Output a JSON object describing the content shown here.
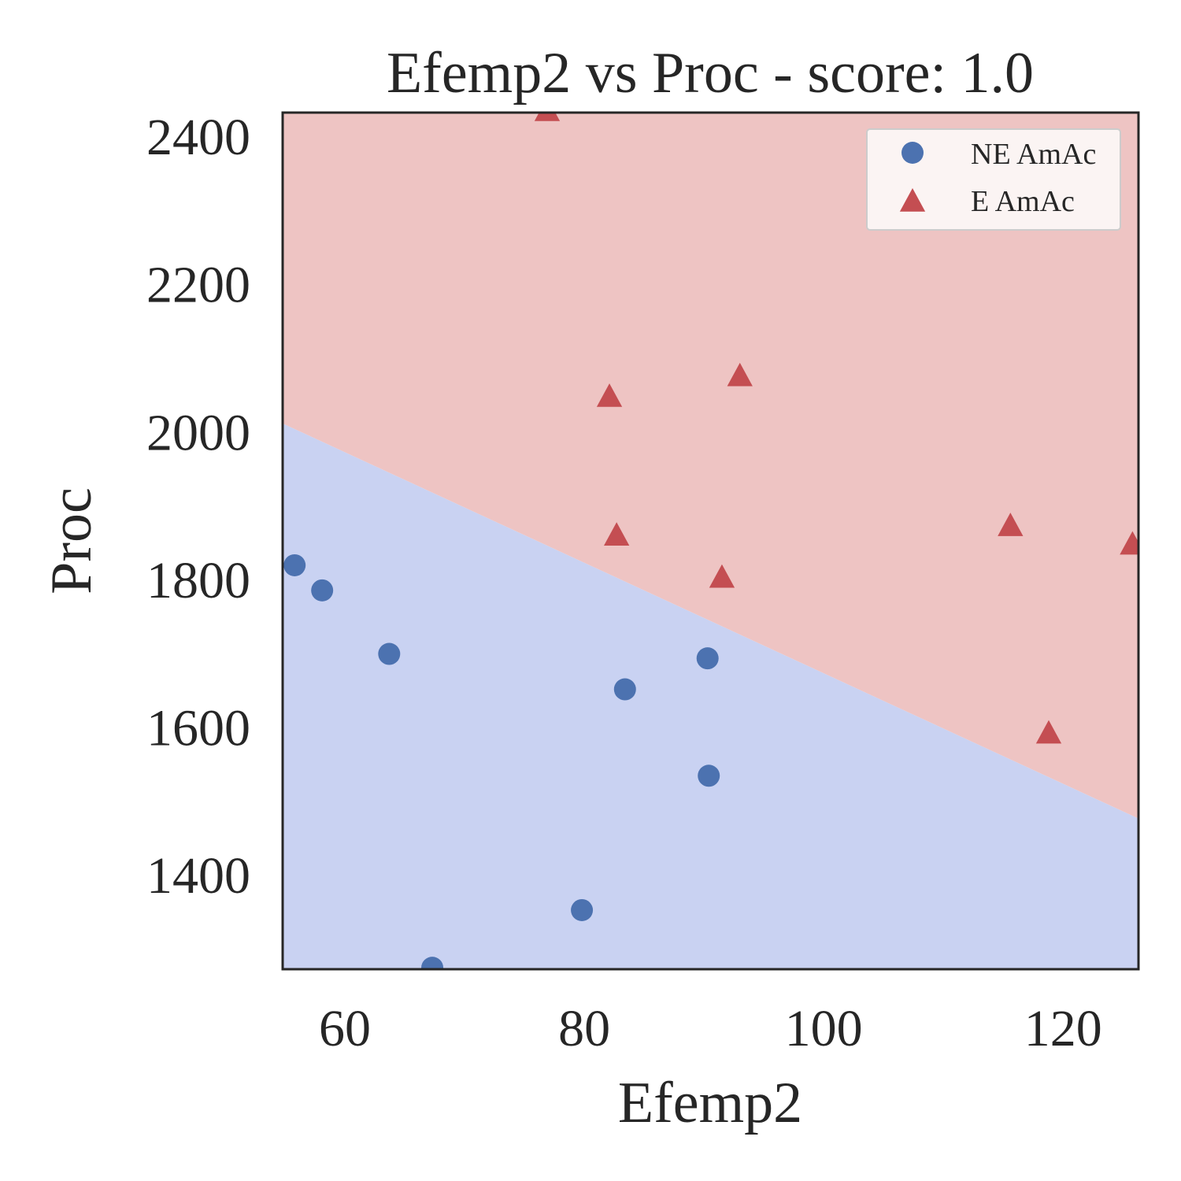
{
  "chart_data": {
    "type": "scatter",
    "title": "Efemp2 vs Proc - score: 1.0",
    "xlabel": "Efemp2",
    "ylabel": "Proc",
    "xlim": [
      54.8,
      126.3
    ],
    "ylim": [
      1270,
      2430
    ],
    "x_ticks": [
      60,
      80,
      100,
      120
    ],
    "y_ticks": [
      1400,
      1600,
      1800,
      2000,
      2200,
      2400
    ],
    "grid": false,
    "legend_position": "top-right",
    "decision_boundary": {
      "left": {
        "x": 54.8,
        "y": 2009
      },
      "right": {
        "x": 126.3,
        "y": 1474
      }
    },
    "colors": {
      "NE AmAc": "#4c72b0",
      "E AmAc": "#c44e52",
      "region_NE": "#c9d2f2",
      "region_E": "#eec4c3",
      "axes": "#262626"
    },
    "series": [
      {
        "name": "NE AmAc",
        "marker": "circle",
        "points": [
          {
            "x": 55.8,
            "y": 1817
          },
          {
            "x": 58.1,
            "y": 1783
          },
          {
            "x": 63.7,
            "y": 1697
          },
          {
            "x": 67.3,
            "y": 1272
          },
          {
            "x": 79.8,
            "y": 1350
          },
          {
            "x": 83.4,
            "y": 1649
          },
          {
            "x": 90.3,
            "y": 1691
          },
          {
            "x": 90.4,
            "y": 1532
          }
        ]
      },
      {
        "name": "E AmAc",
        "marker": "triangle",
        "points": [
          {
            "x": 76.9,
            "y": 2430
          },
          {
            "x": 82.1,
            "y": 2043
          },
          {
            "x": 82.7,
            "y": 1855
          },
          {
            "x": 91.5,
            "y": 1798
          },
          {
            "x": 93.0,
            "y": 2071
          },
          {
            "x": 115.6,
            "y": 1868
          },
          {
            "x": 118.8,
            "y": 1587
          },
          {
            "x": 125.8,
            "y": 1843
          }
        ]
      }
    ]
  }
}
